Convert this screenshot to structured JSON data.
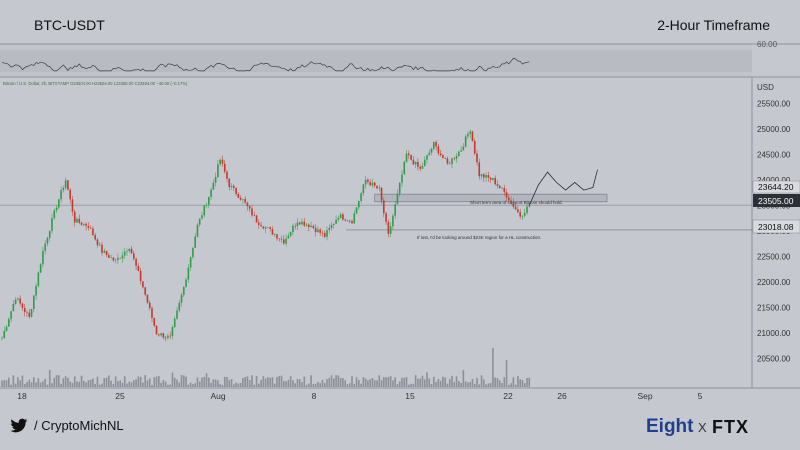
{
  "header": {
    "title": "BTC-USDT",
    "timeframe": "2-Hour Timeframe"
  },
  "chart_info_line": "Bitcoin / U.S. Dollar, 2h, BITSTAMP O23504.00 H23504.00 L23355.00 C23484.00 −40.00 (−0.17%)",
  "chart_data": {
    "type": "candlestick",
    "currency_label": "USD",
    "ylim": [
      20000,
      25800
    ],
    "y_ticks": [
      20500,
      21000,
      21500,
      22000,
      22500,
      23000,
      23500,
      24000,
      24500,
      25000,
      25500
    ],
    "x_tick_labels": [
      "18",
      "25",
      "Aug",
      "8",
      "15",
      "22",
      "26",
      "Sep",
      "5"
    ],
    "price_tags": [
      "23644.20",
      "23505.00",
      "23018.08"
    ],
    "oscillator_tick": "60.00",
    "support_zone": {
      "from": 23570,
      "to": 23720
    },
    "levels": [
      23505.0,
      23018.08
    ],
    "annotations": [
      "Short term area of support Bitcoin should hold.",
      "If lost, I'd be looking around $23K region for a HL construction."
    ],
    "price_path": [
      {
        "bar": 0,
        "close": 20900
      },
      {
        "bar": 6,
        "close": 21700
      },
      {
        "bar": 12,
        "close": 21300
      },
      {
        "bar": 18,
        "close": 22600
      },
      {
        "bar": 24,
        "close": 23500
      },
      {
        "bar": 28,
        "close": 24000
      },
      {
        "bar": 32,
        "close": 23200
      },
      {
        "bar": 38,
        "close": 23100
      },
      {
        "bar": 44,
        "close": 22600
      },
      {
        "bar": 50,
        "close": 22400
      },
      {
        "bar": 56,
        "close": 22700
      },
      {
        "bar": 62,
        "close": 21900
      },
      {
        "bar": 68,
        "close": 21000
      },
      {
        "bar": 74,
        "close": 20900
      },
      {
        "bar": 80,
        "close": 21900
      },
      {
        "bar": 86,
        "close": 23100
      },
      {
        "bar": 92,
        "close": 23800
      },
      {
        "bar": 96,
        "close": 24400
      },
      {
        "bar": 100,
        "close": 23900
      },
      {
        "bar": 106,
        "close": 23600
      },
      {
        "bar": 112,
        "close": 23200
      },
      {
        "bar": 118,
        "close": 23000
      },
      {
        "bar": 124,
        "close": 22800
      },
      {
        "bar": 130,
        "close": 23200
      },
      {
        "bar": 136,
        "close": 23100
      },
      {
        "bar": 142,
        "close": 22900
      },
      {
        "bar": 148,
        "close": 23300
      },
      {
        "bar": 154,
        "close": 23200
      },
      {
        "bar": 160,
        "close": 24000
      },
      {
        "bar": 166,
        "close": 23800
      },
      {
        "bar": 170,
        "close": 22900
      },
      {
        "bar": 174,
        "close": 23700
      },
      {
        "bar": 178,
        "close": 24500
      },
      {
        "bar": 184,
        "close": 24200
      },
      {
        "bar": 190,
        "close": 24700
      },
      {
        "bar": 196,
        "close": 24300
      },
      {
        "bar": 202,
        "close": 24600
      },
      {
        "bar": 206,
        "close": 25000
      },
      {
        "bar": 210,
        "close": 24100
      },
      {
        "bar": 216,
        "close": 24000
      },
      {
        "bar": 222,
        "close": 23700
      },
      {
        "bar": 228,
        "close": 23300
      },
      {
        "bar": 232,
        "close": 23500
      }
    ],
    "projection_path": [
      {
        "bar": 232,
        "close": 23500
      },
      {
        "bar": 236,
        "close": 23900
      },
      {
        "bar": 240,
        "close": 24150
      },
      {
        "bar": 244,
        "close": 23950
      },
      {
        "bar": 248,
        "close": 23800
      },
      {
        "bar": 252,
        "close": 23950
      },
      {
        "bar": 256,
        "close": 23800
      },
      {
        "bar": 260,
        "close": 23850
      },
      {
        "bar": 262,
        "close": 24200
      }
    ]
  },
  "footer": {
    "handle": "/ CryptoMichNL",
    "brand": "Eight",
    "brand_x": "X",
    "partner": "FTX"
  }
}
